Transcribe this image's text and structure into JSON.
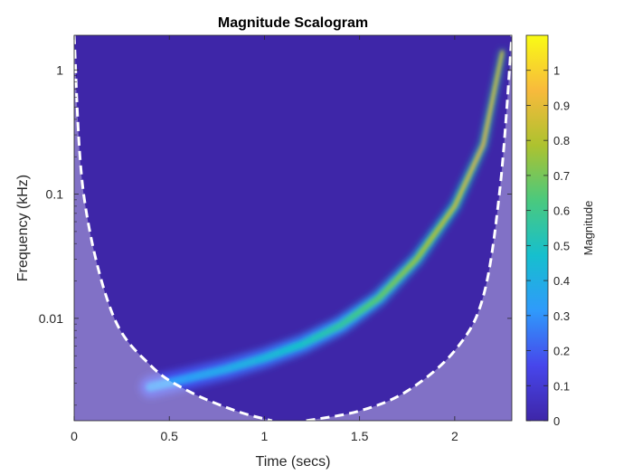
{
  "chart_data": {
    "type": "heatmap",
    "title": "Magnitude Scalogram",
    "xlabel": "Time (secs)",
    "ylabel": "Frequency (kHz)",
    "xlim": [
      0,
      2.3
    ],
    "ylim": [
      0.0015,
      1.9
    ],
    "yscale": "log",
    "x_ticks": [
      0,
      0.5,
      1,
      1.5,
      2
    ],
    "x_tick_labels": [
      "0",
      "0.5",
      "1",
      "1.5",
      "2"
    ],
    "y_ticks": [
      0.01,
      0.1,
      1
    ],
    "y_tick_labels": [
      "0.01",
      "0.1",
      "1"
    ],
    "colorbar": {
      "label": "Magnitude",
      "range": [
        0,
        1.1
      ],
      "ticks": [
        0,
        0.1,
        0.2,
        0.3,
        0.4,
        0.5,
        0.6,
        0.7,
        0.8,
        0.9,
        1
      ],
      "tick_labels": [
        "0",
        "0.1",
        "0.2",
        "0.3",
        "0.4",
        "0.5",
        "0.6",
        "0.7",
        "0.8",
        "0.9",
        "1"
      ],
      "colormap": "parula",
      "colors": [
        "#3E26A8",
        "#4746EB",
        "#2F9AFB",
        "#16BFCE",
        "#4AC97E",
        "#ADC22F",
        "#F8BA3C",
        "#F9FB15"
      ]
    },
    "ridge": {
      "description": "dominant ridge of a chirp: frequency rising with time",
      "time": [
        0.4,
        0.6,
        0.8,
        1.0,
        1.2,
        1.4,
        1.6,
        1.8,
        2.0,
        2.15,
        2.25
      ],
      "frequency_khz": [
        0.0028,
        0.0033,
        0.0039,
        0.0048,
        0.0062,
        0.0088,
        0.0145,
        0.03,
        0.08,
        0.25,
        1.4
      ],
      "magnitude": [
        0.3,
        0.33,
        0.37,
        0.42,
        0.48,
        0.55,
        0.65,
        0.75,
        0.85,
        0.95,
        1.05
      ]
    },
    "cone_of_influence": {
      "style": "white dashed line, shaded outside",
      "left_time": [
        0.0,
        0.05,
        0.2,
        0.4,
        0.6,
        0.85,
        1.04
      ],
      "left_frequency_khz": [
        1.9,
        0.1,
        0.011,
        0.0042,
        0.0026,
        0.0018,
        0.0015
      ],
      "right_time": [
        1.22,
        1.5,
        1.75,
        2.0,
        2.15,
        2.24,
        2.3
      ],
      "right_frequency_khz": [
        0.0015,
        0.0018,
        0.0026,
        0.0055,
        0.015,
        0.12,
        1.9
      ]
    },
    "grid": false,
    "legend": "colorbar-right"
  }
}
